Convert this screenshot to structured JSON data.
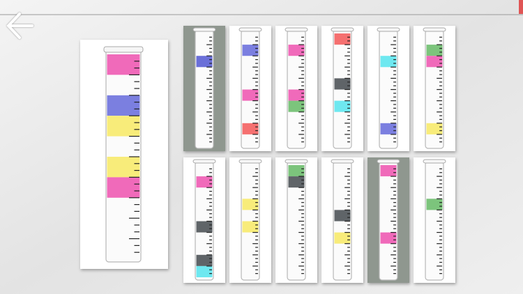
{
  "large_tube": {
    "slots": [
      "#f06aba",
      null,
      "#7b7fe0",
      "#f8ec7a",
      null,
      "#f8ec7a",
      "#f06aba",
      null,
      null,
      null
    ]
  },
  "tubes": [
    {
      "selected": true,
      "slots": [
        null,
        null,
        "#6a6fd8",
        null,
        null,
        null,
        null,
        null,
        null,
        null
      ]
    },
    {
      "selected": false,
      "slots": [
        null,
        "#7b7fe0",
        null,
        null,
        null,
        "#f06aba",
        null,
        null,
        "#f57070",
        null
      ]
    },
    {
      "selected": false,
      "slots": [
        null,
        "#f06aba",
        null,
        null,
        null,
        "#f06aba",
        "#7cc47c",
        null,
        null,
        null
      ]
    },
    {
      "selected": false,
      "slots": [
        "#f57070",
        null,
        null,
        null,
        "#5f6468",
        null,
        "#6ee8f0",
        null,
        null,
        null
      ]
    },
    {
      "selected": false,
      "slots": [
        null,
        null,
        "#6ee8f0",
        null,
        null,
        null,
        null,
        null,
        "#7b7fe0",
        null
      ]
    },
    {
      "selected": false,
      "slots": [
        null,
        "#7cc47c",
        "#f06aba",
        null,
        null,
        null,
        null,
        null,
        "#f8ec7a",
        null
      ]
    },
    {
      "selected": false,
      "slots": [
        null,
        "#f06aba",
        null,
        null,
        null,
        "#5f6468",
        null,
        null,
        "#5f6468",
        "#6ee8f0"
      ]
    },
    {
      "selected": false,
      "slots": [
        null,
        null,
        null,
        "#f8ec7a",
        null,
        "#f8ec7a",
        null,
        null,
        null,
        null
      ]
    },
    {
      "selected": false,
      "slots": [
        "#7cc47c",
        "#5f6468",
        null,
        null,
        null,
        null,
        null,
        null,
        null,
        null
      ]
    },
    {
      "selected": false,
      "slots": [
        null,
        null,
        null,
        null,
        "#5f6468",
        null,
        "#f8ec7a",
        null,
        null,
        null
      ]
    },
    {
      "selected": true,
      "slots": [
        "#f06aba",
        null,
        null,
        null,
        null,
        null,
        "#f06aba",
        null,
        null,
        null
      ]
    },
    {
      "selected": false,
      "slots": [
        null,
        null,
        null,
        "#7cc47c",
        null,
        null,
        null,
        null,
        null,
        null
      ]
    }
  ]
}
